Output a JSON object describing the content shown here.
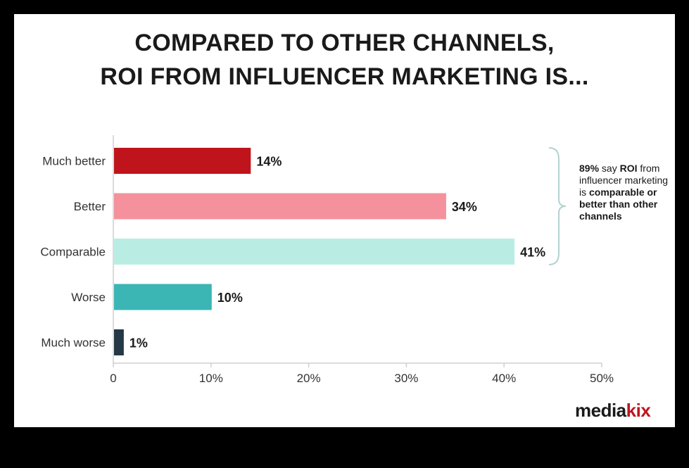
{
  "chart_data": {
    "type": "bar",
    "orientation": "horizontal",
    "title_line1": "COMPARED TO OTHER CHANNELS,",
    "title_line2": "ROI FROM INFLUENCER MARKETING IS...",
    "categories": [
      "Much better",
      "Better",
      "Comparable",
      "Worse",
      "Much worse"
    ],
    "values": [
      14,
      34,
      41,
      10,
      1
    ],
    "value_labels": [
      "14%",
      "34%",
      "41%",
      "10%",
      "1%"
    ],
    "colors": [
      "#c0141c",
      "#f4919c",
      "#b9ede3",
      "#3cb5b5",
      "#243846"
    ],
    "xlim": [
      0,
      50
    ],
    "x_ticks": [
      0,
      10,
      20,
      30,
      40,
      50
    ],
    "x_tick_labels": [
      "0",
      "10%",
      "20%",
      "30%",
      "40%",
      "50%"
    ],
    "grid": false,
    "annotation": {
      "brace_spans": [
        "Much better",
        "Better",
        "Comparable"
      ],
      "pct": "89%",
      "say": " say ",
      "roi": "ROI",
      "middle": "from influencer marketing is",
      "bold_end": "comparable or better than other channels"
    }
  },
  "brand": {
    "logo_main": "media",
    "logo_accent": "kix",
    "accent_color": "#c0141c"
  }
}
